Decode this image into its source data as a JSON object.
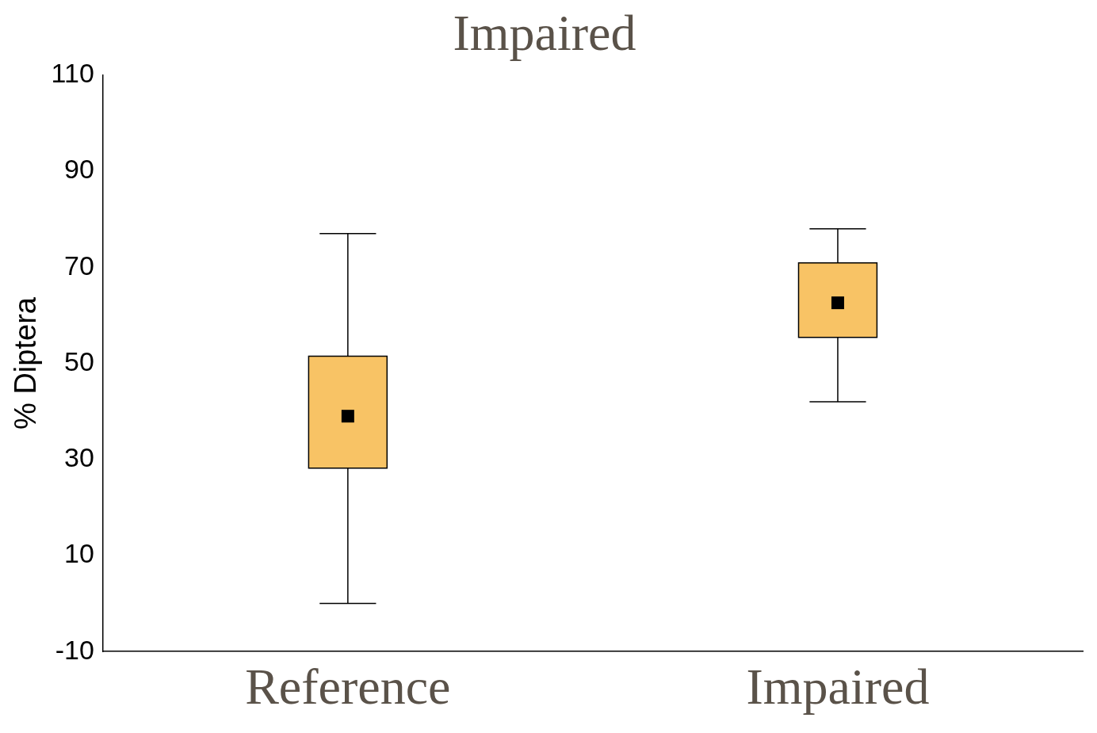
{
  "chart_data": {
    "type": "box",
    "title": "Impaired",
    "ylabel": "% Diptera",
    "categories": [
      "Reference",
      "Impaired"
    ],
    "series": [
      {
        "color": "#f8c365",
        "boxes": [
          {
            "low": 0,
            "q1": 28.2,
            "median": 39,
            "q3": 51.5,
            "high": 77
          },
          {
            "low": 42,
            "q1": 55.4,
            "median": 62.6,
            "q3": 70.9,
            "high": 78
          }
        ]
      }
    ],
    "ylim": [
      -10,
      110
    ],
    "yticks": [
      -10,
      10,
      30,
      50,
      70,
      90,
      110
    ],
    "grid": false,
    "legend": false
  }
}
